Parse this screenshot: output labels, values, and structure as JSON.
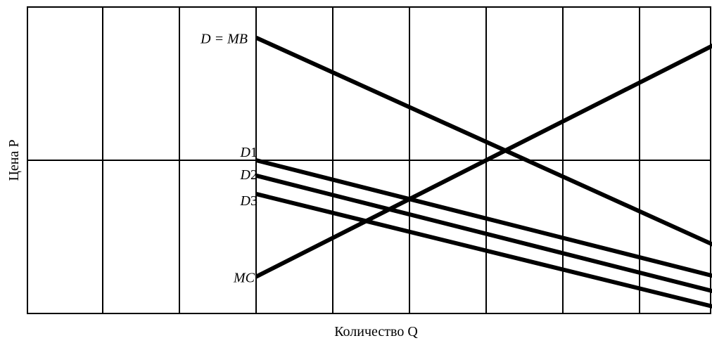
{
  "chart_data": {
    "type": "line",
    "xlabel": "Количество Q",
    "ylabel": "Цена P",
    "xlim": [
      -1,
      8
    ],
    "ylim": [
      0,
      100
    ],
    "grid": true,
    "x_gridlines": [
      0,
      1,
      2,
      3,
      4,
      5,
      6,
      7
    ],
    "y_gridlines": [
      50,
      100
    ],
    "series": [
      {
        "name": "D = MB",
        "label_main": "D",
        "label_tail": " = MB",
        "x": [
          1,
          7
        ],
        "y": [
          90,
          22
        ]
      },
      {
        "name": "MC",
        "label_main": "MC",
        "label_tail": "",
        "x": [
          1,
          7
        ],
        "y": [
          12,
          88
        ]
      },
      {
        "name": "D1",
        "label_main": "D",
        "label_tail": "1",
        "x": [
          1,
          7
        ],
        "y": [
          50,
          12
        ]
      },
      {
        "name": "D2",
        "label_main": "D",
        "label_tail": "2",
        "x": [
          1,
          7
        ],
        "y": [
          45,
          7
        ]
      },
      {
        "name": "D3",
        "label_main": "D",
        "label_tail": "3",
        "x": [
          1,
          7
        ],
        "y": [
          39,
          2
        ]
      }
    ]
  }
}
